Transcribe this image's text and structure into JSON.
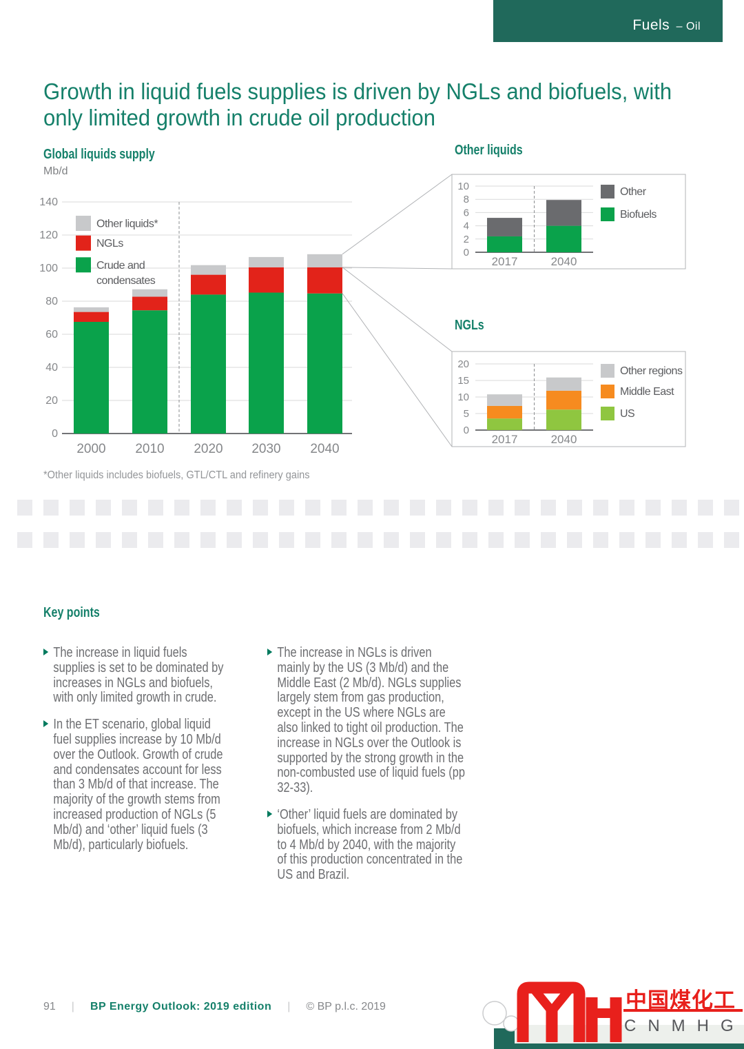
{
  "header": {
    "section": "Fuels",
    "topic_suffix": "– Oil"
  },
  "title": "Growth in liquid fuels supplies is driven by NGLs and biofuels, with only limited growth in crude oil production",
  "footnote": "*Other liquids includes biofuels, GTL/CTL and refinery gains",
  "key_points": {
    "heading": "Key points",
    "left": [
      "The increase in liquid fuels supplies is set to be dominated by increases in NGLs and biofuels, with only limited growth in crude.",
      "In the ET scenario, global liquid fuel supplies increase by 10 Mb/d over the Outlook. Growth of crude and condensates account for less than 3 Mb/d of that increase. The majority of the growth stems from increased production of NGLs (5 Mb/d) and ‘other’ liquid fuels (3 Mb/d), particularly biofuels."
    ],
    "right": [
      "The increase in NGLs is driven mainly by the US (3 Mb/d) and the Middle East (2 Mb/d). NGLs supplies largely stem from gas production, except in the US where NGLs are also linked to tight oil production. The increase in NGLs over the Outlook is supported by the strong growth in the non-combusted use of liquid fuels (pp 32-33).",
      "‘Other’ liquid fuels are dominated by biofuels, which increase from 2 Mb/d to 4 Mb/d by 2040, with the majority of this production concentrated in the US and Brazil."
    ]
  },
  "footer": {
    "page": "91",
    "edition": "BP Energy Outlook: 2019 edition",
    "copyright": "© BP p.l.c. 2019",
    "separator": "|"
  },
  "logo": {
    "chinese": "中国煤化工",
    "latin": "CNMHG"
  },
  "colors": {
    "crude_green": "#0aa24b",
    "ngl_red": "#e2231a",
    "other_grey": "#c8c9cb",
    "other_dark_grey": "#6a6b6e",
    "orange": "#f68b1f",
    "us_light_green": "#8fc640",
    "brand_dark_green": "#20695b",
    "heading_green": "#15806a",
    "logo_red": "#e8201c"
  },
  "chart_data": [
    {
      "type": "bar",
      "stacked": true,
      "title": "Global liquids supply",
      "ylabel": "Mb/d",
      "categories": [
        "2000",
        "2010",
        "2020",
        "2030",
        "2040"
      ],
      "series": [
        {
          "name": "Crude and condensates",
          "color": "#0aa24b",
          "values": [
            67.5,
            74.5,
            84.0,
            85.2,
            84.7
          ]
        },
        {
          "name": "NGLs",
          "color": "#e2231a",
          "values": [
            6.0,
            8.2,
            12.0,
            15.3,
            15.8
          ]
        },
        {
          "name": "Other liquids*",
          "color": "#c8c9cb",
          "values": [
            2.8,
            4.5,
            5.8,
            6.2,
            7.9
          ]
        }
      ],
      "ylim": [
        0,
        140
      ],
      "ytick": 20,
      "grid": true,
      "legend_position": "upper-left"
    },
    {
      "type": "bar",
      "stacked": true,
      "title": "Other liquids",
      "categories": [
        "2017",
        "2040"
      ],
      "series": [
        {
          "name": "Biofuels",
          "color": "#0aa24b",
          "values": [
            2.4,
            4.0
          ]
        },
        {
          "name": "Other",
          "color": "#6a6b6e",
          "values": [
            2.8,
            3.9
          ]
        }
      ],
      "ylim": [
        0,
        10
      ],
      "ytick": 2,
      "grid": true,
      "legend_position": "right"
    },
    {
      "type": "bar",
      "stacked": true,
      "title": "NGLs",
      "categories": [
        "2017",
        "2040"
      ],
      "series": [
        {
          "name": "US",
          "color": "#8fc640",
          "values": [
            3.5,
            6.2
          ]
        },
        {
          "name": "Middle East",
          "color": "#f68b1f",
          "values": [
            3.8,
            5.7
          ]
        },
        {
          "name": "Other regions",
          "color": "#c8c9cb",
          "values": [
            3.5,
            4.0
          ]
        }
      ],
      "ylim": [
        0,
        20
      ],
      "ytick": 5,
      "grid": true,
      "legend_position": "right"
    }
  ]
}
